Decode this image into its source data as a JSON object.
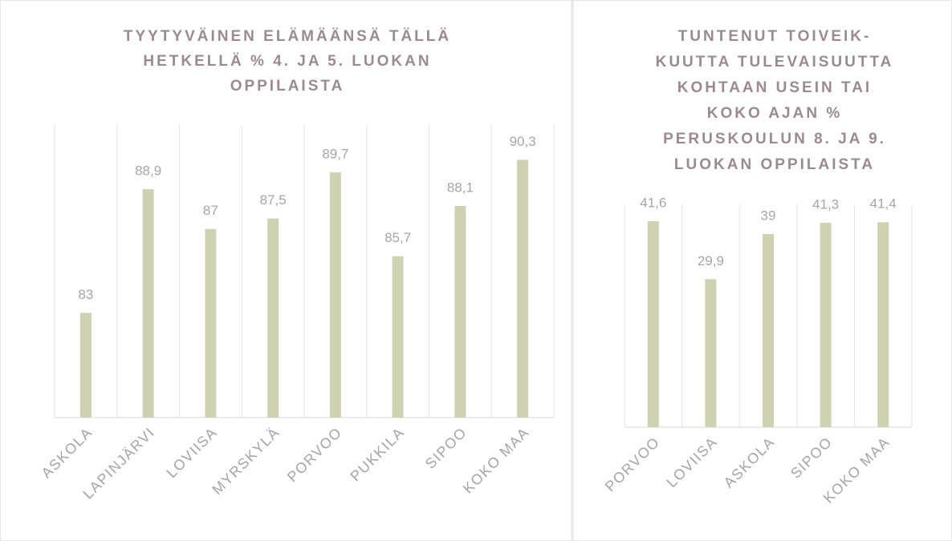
{
  "chart_data": [
    {
      "type": "bar",
      "title": [
        "TYYTYVÄINEN ELÄMÄÄNSÄ TÄLLÄ",
        "HETKELLÄ % 4. JA 5. LUOKAN",
        "OPPILAISTA"
      ],
      "categories": [
        "ASKOLA",
        "LAPINJÄRVI",
        "LOVIISA",
        "MYRSKYLÄ",
        "PORVOO",
        "PUKKILA",
        "SIPOO",
        "KOKO MAA"
      ],
      "values": [
        83,
        88.9,
        87,
        87.5,
        89.7,
        85.7,
        88.1,
        90.3
      ],
      "value_labels": [
        "83",
        "88,9",
        "87",
        "87,5",
        "89,7",
        "85,7",
        "88,1",
        "90,3"
      ],
      "color": "#cfd1b3",
      "ylim": [
        78,
        92
      ],
      "grid": true
    },
    {
      "type": "bar",
      "title": [
        "TUNTENUT TOIVEIK-",
        "KUUTTA TULEVAISUUTTA",
        "KOHTAAN USEIN TAI",
        "KOKO AJAN %",
        "PERUSKOULUN 8. JA 9.",
        "LUOKAN OPPILAISTA"
      ],
      "categories": [
        "PORVOO",
        "LOVIISA",
        "ASKOLA",
        "SIPOO",
        "KOKO MAA"
      ],
      "values": [
        41.6,
        29.9,
        39,
        41.3,
        41.4
      ],
      "value_labels": [
        "41,6",
        "29,9",
        "39",
        "41,3",
        "41,4"
      ],
      "color": "#cfd1b3",
      "ylim": [
        0,
        45
      ],
      "grid": true
    }
  ]
}
